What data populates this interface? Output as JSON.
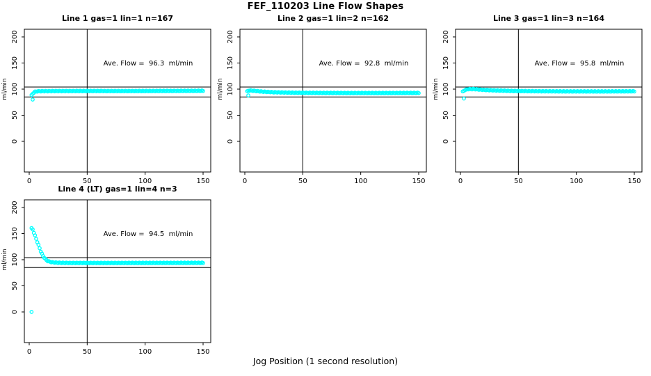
{
  "page_title": "FEF_110203  Line Flow Shapes",
  "x_axis_label": "Jog Position (1 second resolution)",
  "chart_data": {
    "type": "scatter",
    "point_color": "#00FFFF",
    "axis_color": "#000000",
    "x_ticks": [
      0,
      50,
      100,
      150
    ],
    "y_ticks": [
      0,
      50,
      100,
      150,
      200
    ],
    "xlim": [
      0,
      154
    ],
    "ylim": [
      0,
      205
    ],
    "ylabel": "ml/min",
    "xlabel": "Jog Position (1 second resolution)",
    "grid": false,
    "vline_x": 50,
    "hlines_y": [
      104,
      85
    ],
    "x_sample_range": [
      2,
      150
    ],
    "x_sample_step": 1,
    "panels": [
      {
        "title": "Line 1 gas=1 lin=1 n=167",
        "annotation": "Ave. Flow =  96.3  ml/min",
        "avg_flow_ml_min": 96.3,
        "n": 167,
        "band_anchors": [
          [
            2,
            88
          ],
          [
            3,
            91
          ],
          [
            4,
            93.5
          ],
          [
            5,
            95
          ],
          [
            7,
            95.8
          ],
          [
            10,
            96
          ],
          [
            20,
            96.2
          ],
          [
            40,
            96.3
          ],
          [
            60,
            96.3
          ],
          [
            80,
            96.2
          ],
          [
            100,
            96.3
          ],
          [
            120,
            96.5
          ],
          [
            150,
            96.8
          ]
        ],
        "outliers": [
          [
            3,
            80
          ]
        ]
      },
      {
        "title": "Line 2 gas=1 lin=2 n=162",
        "annotation": "Ave. Flow =  92.8  ml/min",
        "avg_flow_ml_min": 92.8,
        "n": 162,
        "band_anchors": [
          [
            2,
            95.5
          ],
          [
            3,
            97
          ],
          [
            5,
            97.5
          ],
          [
            8,
            96.8
          ],
          [
            15,
            95.2
          ],
          [
            25,
            94
          ],
          [
            40,
            93.2
          ],
          [
            60,
            92.8
          ],
          [
            90,
            92.5
          ],
          [
            120,
            92.5
          ],
          [
            150,
            92.7
          ]
        ],
        "outliers": [
          [
            3,
            88
          ]
        ]
      },
      {
        "title": "Line 3 gas=1 lin=3 n=164",
        "annotation": "Ave. Flow =  95.8  ml/min",
        "avg_flow_ml_min": 95.8,
        "n": 164,
        "band_anchors": [
          [
            2,
            95
          ],
          [
            4,
            98.5
          ],
          [
            7,
            100
          ],
          [
            12,
            100
          ],
          [
            20,
            98.5
          ],
          [
            30,
            97.5
          ],
          [
            45,
            96.5
          ],
          [
            60,
            96
          ],
          [
            90,
            95.6
          ],
          [
            120,
            95.5
          ],
          [
            150,
            95.8
          ]
        ],
        "outliers": [
          [
            3,
            82
          ]
        ]
      },
      {
        "title": "Line 4 (LT) gas=1 lin=4 n=3",
        "annotation": "Ave. Flow =  94.5  ml/min",
        "avg_flow_ml_min": 94.5,
        "n": 3,
        "band_anchors": [
          [
            2,
            160
          ],
          [
            3,
            158
          ],
          [
            4,
            152
          ],
          [
            5,
            146
          ],
          [
            6,
            140
          ],
          [
            7,
            134
          ],
          [
            8,
            128
          ],
          [
            9,
            122
          ],
          [
            10,
            116
          ],
          [
            11,
            111
          ],
          [
            12,
            107
          ],
          [
            13,
            104
          ],
          [
            14,
            101
          ],
          [
            15,
            99
          ],
          [
            16,
            97.5
          ],
          [
            17,
            96.5
          ],
          [
            18,
            96
          ],
          [
            20,
            95
          ],
          [
            25,
            94.2
          ],
          [
            35,
            93.8
          ],
          [
            60,
            93.7
          ],
          [
            100,
            93.8
          ],
          [
            150,
            94
          ]
        ],
        "outliers": [
          [
            2,
            0
          ]
        ]
      }
    ]
  }
}
